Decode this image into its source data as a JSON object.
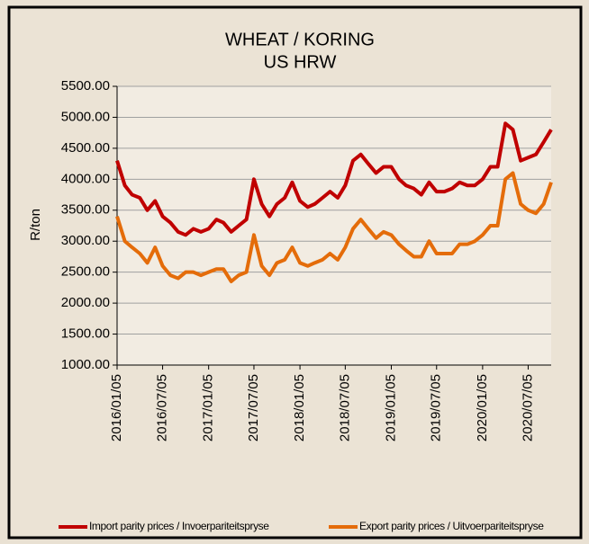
{
  "chart_data": {
    "type": "line",
    "title": "WHEAT / KORING",
    "subtitle": "US HRW",
    "y_label": "R/ton",
    "x": [
      "2016/01/05",
      "2016/02/05",
      "2016/03/05",
      "2016/04/05",
      "2016/05/05",
      "2016/06/05",
      "2016/07/05",
      "2016/08/05",
      "2016/09/05",
      "2016/10/05",
      "2016/11/05",
      "2016/12/05",
      "2017/01/05",
      "2017/02/05",
      "2017/03/05",
      "2017/04/05",
      "2017/05/05",
      "2017/06/05",
      "2017/07/05",
      "2017/08/05",
      "2017/09/05",
      "2017/10/05",
      "2017/11/05",
      "2017/12/05",
      "2018/01/05",
      "2018/02/05",
      "2018/03/05",
      "2018/04/05",
      "2018/05/05",
      "2018/06/05",
      "2018/07/05",
      "2018/08/05",
      "2018/09/05",
      "2018/10/05",
      "2018/11/05",
      "2018/12/05",
      "2019/01/05",
      "2019/02/05",
      "2019/03/05",
      "2019/04/05",
      "2019/05/05",
      "2019/06/05",
      "2019/07/05",
      "2019/08/05",
      "2019/09/05",
      "2019/10/05",
      "2019/11/05",
      "2019/12/05",
      "2020/01/05",
      "2020/02/05",
      "2020/03/05",
      "2020/04/05",
      "2020/05/05",
      "2020/06/05",
      "2020/07/05",
      "2020/08/05",
      "2020/09/05",
      "2020/10/05"
    ],
    "series": [
      {
        "name": "Import parity prices / Invoerpariteitspryse",
        "color": "#c00000",
        "values": [
          4300,
          3900,
          3750,
          3700,
          3500,
          3650,
          3400,
          3300,
          3150,
          3100,
          3200,
          3150,
          3200,
          3350,
          3300,
          3150,
          3250,
          3350,
          4000,
          3600,
          3400,
          3600,
          3700,
          3950,
          3650,
          3550,
          3600,
          3700,
          3800,
          3700,
          3900,
          4300,
          4400,
          4250,
          4100,
          4200,
          4200,
          4000,
          3900,
          3850,
          3750,
          3950,
          3800,
          3800,
          3850,
          3950,
          3900,
          3900,
          4000,
          4200,
          4200,
          4900,
          4800,
          4300,
          4350,
          4400,
          4600,
          4800
        ]
      },
      {
        "name": "Export parity prices / Uitvoerpariteitspryse",
        "color": "#e46c0a",
        "values": [
          3400,
          3000,
          2900,
          2800,
          2650,
          2900,
          2600,
          2450,
          2400,
          2500,
          2500,
          2450,
          2500,
          2550,
          2550,
          2350,
          2450,
          2500,
          3100,
          2600,
          2450,
          2650,
          2700,
          2900,
          2650,
          2600,
          2650,
          2700,
          2800,
          2700,
          2900,
          3200,
          3350,
          3200,
          3050,
          3150,
          3100,
          2950,
          2850,
          2750,
          2750,
          3000,
          2800,
          2800,
          2800,
          2950,
          2950,
          3000,
          3100,
          3250,
          3250,
          4000,
          4100,
          3600,
          3500,
          3450,
          3600,
          3950
        ]
      }
    ],
    "xlim": [
      "2016/01/05",
      "2020/10/05"
    ],
    "xticks": [
      "2016/01/05",
      "2016/07/05",
      "2017/01/05",
      "2017/07/05",
      "2018/01/05",
      "2018/07/05",
      "2019/01/05",
      "2019/07/05",
      "2020/01/05",
      "2020/07/05"
    ],
    "ylim": [
      1000,
      5500
    ],
    "yticks": [
      {
        "value": 1000,
        "label": "1000.00"
      },
      {
        "value": 1500,
        "label": "1500.00"
      },
      {
        "value": 2000,
        "label": "2000.00"
      },
      {
        "value": 2500,
        "label": "2500.00"
      },
      {
        "value": 3000,
        "label": "3000.00"
      },
      {
        "value": 3500,
        "label": "3500.00"
      },
      {
        "value": 4000,
        "label": "4000.00"
      },
      {
        "value": 4500,
        "label": "4500.00"
      },
      {
        "value": 5000,
        "label": "5000.00"
      },
      {
        "value": 5500,
        "label": "5500.00"
      }
    ],
    "grid": true,
    "legend": "bottom"
  }
}
